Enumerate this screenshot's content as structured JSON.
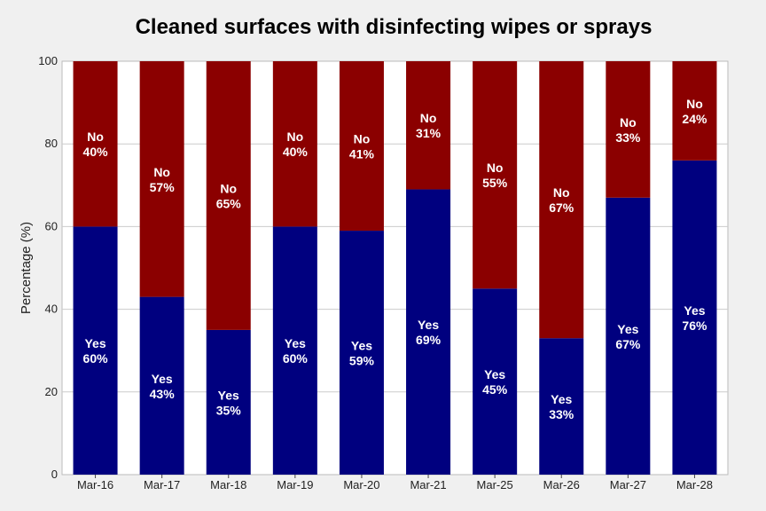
{
  "chart_data": {
    "type": "bar",
    "stacked": true,
    "title": "Cleaned surfaces with disinfecting wipes or sprays",
    "ylabel": "Percentage (%)",
    "xlabel": "",
    "ylim": [
      0,
      100
    ],
    "yticks": [
      0,
      20,
      40,
      60,
      80,
      100
    ],
    "grid": true,
    "categories": [
      "Mar-16",
      "Mar-17",
      "Mar-18",
      "Mar-19",
      "Mar-20",
      "Mar-21",
      "Mar-25",
      "Mar-26",
      "Mar-27",
      "Mar-28"
    ],
    "series": [
      {
        "name": "Yes",
        "color": "#00007f",
        "values": [
          60,
          43,
          35,
          60,
          59,
          69,
          45,
          33,
          67,
          76
        ]
      },
      {
        "name": "No",
        "color": "#8b0000",
        "values": [
          40,
          57,
          65,
          40,
          41,
          31,
          55,
          67,
          33,
          24
        ]
      }
    ]
  }
}
